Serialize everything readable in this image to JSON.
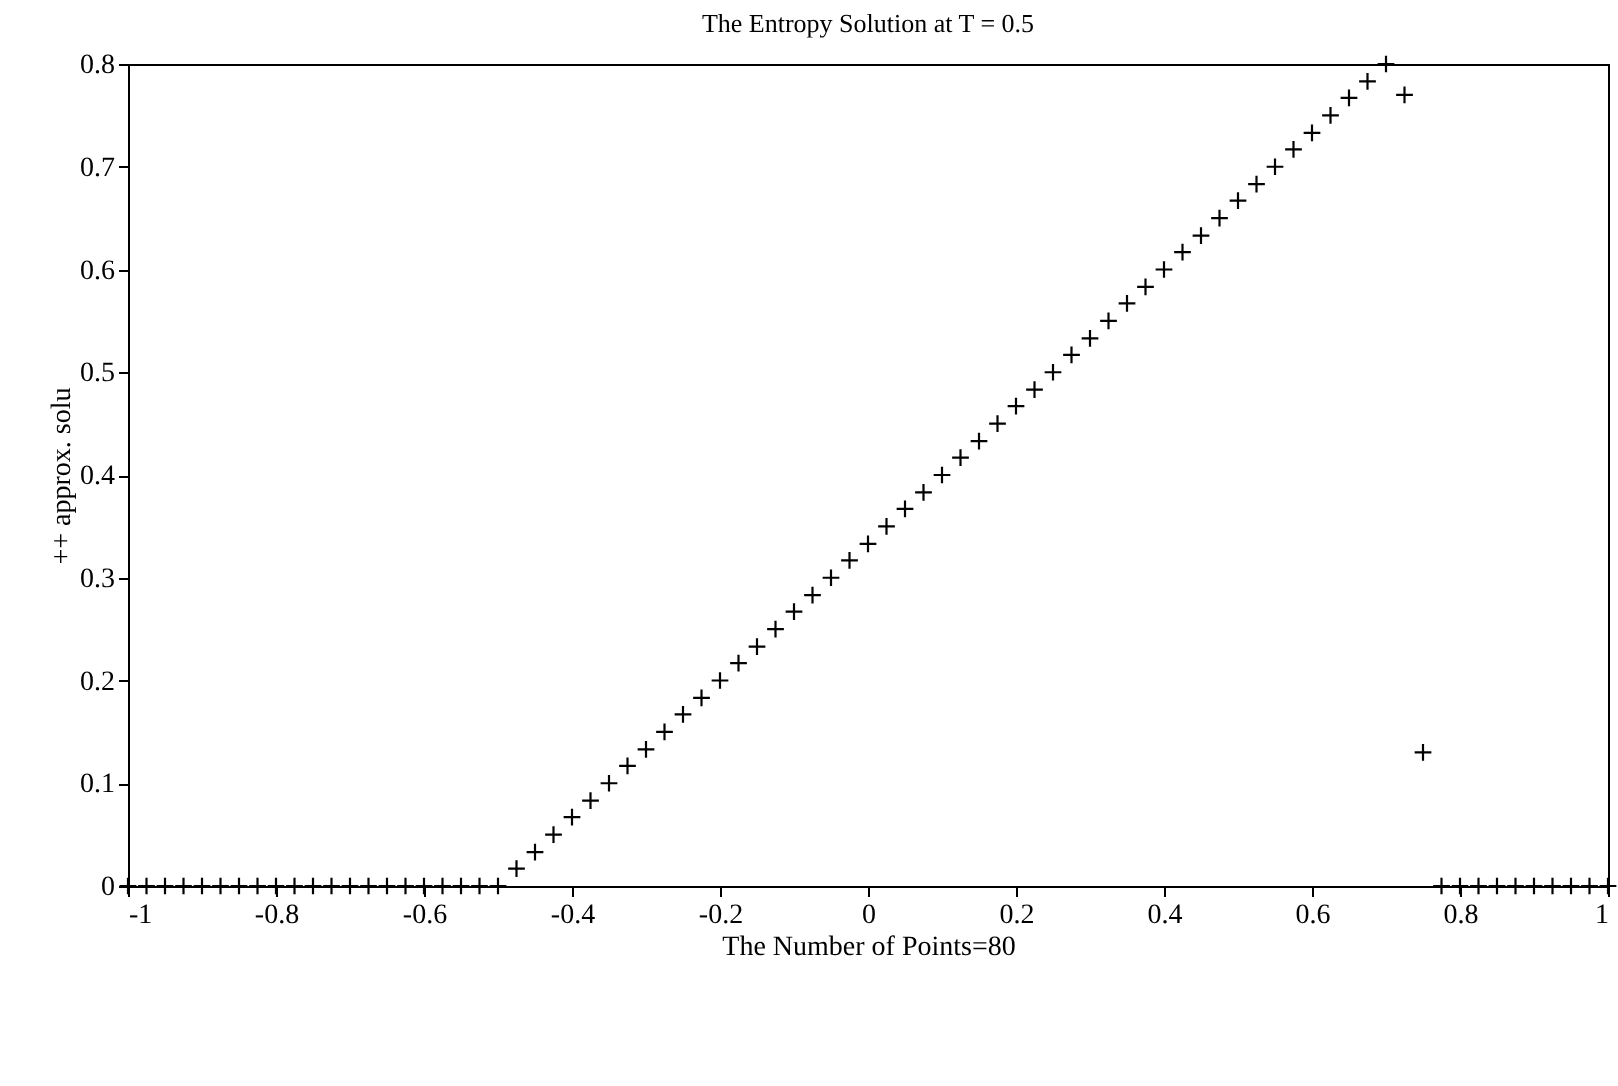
{
  "chart_data": {
    "type": "scatter",
    "title": "The Entropy Solution at T = 0.5",
    "xlabel": "The Number of Points=80",
    "ylabel": "++ approx. solu",
    "x": [
      -1,
      -0.975,
      -0.95,
      -0.925,
      -0.9,
      -0.875,
      -0.85,
      -0.825,
      -0.8,
      -0.775,
      -0.75,
      -0.725,
      -0.7,
      -0.675,
      -0.65,
      -0.625,
      -0.6,
      -0.575,
      -0.55,
      -0.525,
      -0.5,
      -0.475,
      -0.45,
      -0.425,
      -0.4,
      -0.375,
      -0.35,
      -0.325,
      -0.3,
      -0.275,
      -0.25,
      -0.225,
      -0.2,
      -0.175,
      -0.15,
      -0.125,
      -0.1,
      -0.075,
      -0.05,
      -0.025,
      0,
      0.025,
      0.05,
      0.075,
      0.1,
      0.125,
      0.15,
      0.175,
      0.2,
      0.225,
      0.25,
      0.275,
      0.3,
      0.325,
      0.35,
      0.375,
      0.4,
      0.425,
      0.45,
      0.475,
      0.5,
      0.525,
      0.55,
      0.575,
      0.6,
      0.625,
      0.65,
      0.675,
      0.7,
      0.725,
      0.75,
      0.775,
      0.8,
      0.825,
      0.85,
      0.875,
      0.9,
      0.925,
      0.95,
      0.975,
      1
    ],
    "values": [
      0,
      0,
      0,
      0,
      0,
      0,
      0,
      0,
      0,
      0,
      0,
      0,
      0,
      0,
      0,
      0,
      0,
      0,
      0,
      0,
      0,
      0.017,
      0.033,
      0.05,
      0.067,
      0.083,
      0.1,
      0.117,
      0.133,
      0.15,
      0.167,
      0.183,
      0.2,
      0.217,
      0.233,
      0.25,
      0.267,
      0.283,
      0.3,
      0.317,
      0.333,
      0.35,
      0.367,
      0.383,
      0.4,
      0.417,
      0.433,
      0.45,
      0.467,
      0.483,
      0.5,
      0.517,
      0.533,
      0.55,
      0.567,
      0.583,
      0.6,
      0.617,
      0.633,
      0.65,
      0.667,
      0.683,
      0.7,
      0.717,
      0.733,
      0.75,
      0.767,
      0.783,
      0.8,
      0.77,
      0.13,
      0,
      0,
      0,
      0,
      0,
      0,
      0,
      0,
      0,
      0
    ],
    "color": "#000000",
    "marker": "cross",
    "grid": false,
    "xlim": [
      -1,
      1
    ],
    "xticks": [
      -1,
      -0.8,
      -0.6,
      -0.4,
      -0.2,
      0,
      0.2,
      0.4,
      0.6,
      0.8,
      1
    ],
    "ylim": [
      0,
      0.8
    ],
    "yticks": [
      0,
      0.1,
      0.2,
      0.3,
      0.4,
      0.5,
      0.6,
      0.7,
      0.8
    ]
  }
}
